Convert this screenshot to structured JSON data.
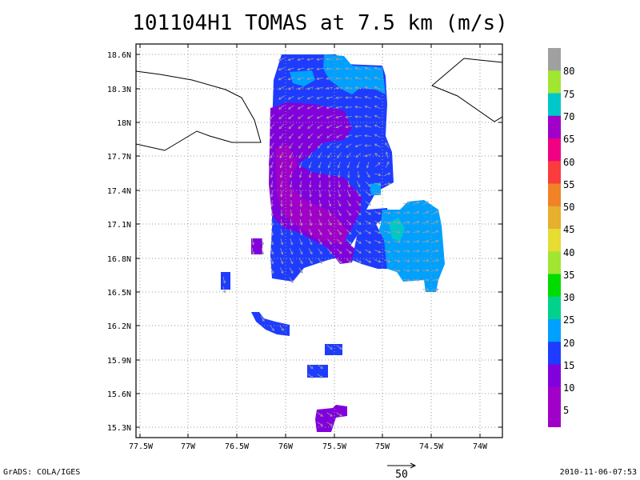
{
  "title": "101104H1 TOMAS at 7.5 km (m/s)",
  "map": {
    "lon_ticks": [
      "77.5W",
      "77W",
      "76.5W",
      "76W",
      "75.5W",
      "75W",
      "74.5W",
      "74W"
    ],
    "lat_ticks": [
      "18.6N",
      "18.3N",
      "18N",
      "17.7N",
      "17.4N",
      "17.1N",
      "16.8N",
      "16.5N",
      "16.2N",
      "15.9N",
      "15.6N",
      "15.3N"
    ],
    "extent": {
      "lon_min": -77.5,
      "lon_max": -73.75,
      "lat_min": 15.2,
      "lat_max": 18.65
    },
    "grid": true
  },
  "colorbar": {
    "labels": [
      "80",
      "75",
      "70",
      "65",
      "60",
      "55",
      "50",
      "45",
      "40",
      "35",
      "30",
      "25",
      "20",
      "15",
      "10",
      "5"
    ],
    "colors": [
      "#a0a0a0",
      "#a0e632",
      "#00c8c8",
      "#a000c8",
      "#f00082",
      "#fa3c3c",
      "#f08228",
      "#e6af2d",
      "#e6dc32",
      "#a0e632",
      "#00dc00",
      "#00d28c",
      "#00a0ff",
      "#1e3cff",
      "#8200dc",
      "#a000c8"
    ]
  },
  "reference_vector": {
    "value": "50"
  },
  "footer": {
    "left": "GrADS: COLA/IGES",
    "right": "2010-11-06-07:53"
  }
}
